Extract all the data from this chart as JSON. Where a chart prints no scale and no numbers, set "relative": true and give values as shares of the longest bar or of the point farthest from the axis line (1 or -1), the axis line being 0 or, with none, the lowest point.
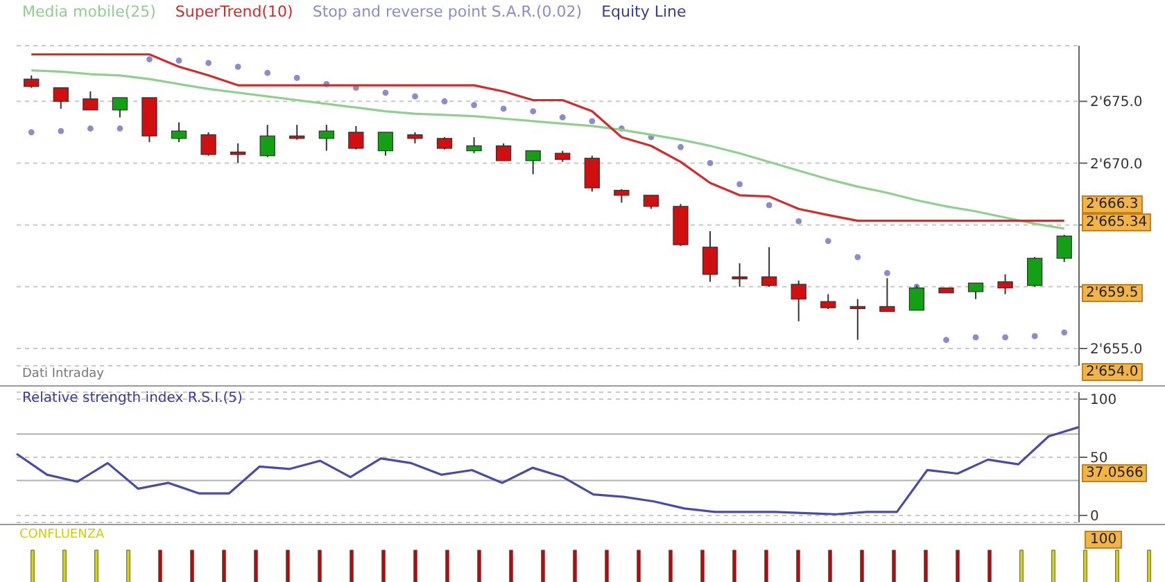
{
  "chart_data": [
    {
      "type": "candlestick",
      "categories": [
        null,
        null,
        null,
        null,
        null,
        null,
        null,
        null,
        null,
        null,
        null,
        null,
        null,
        null,
        null,
        null,
        null,
        null,
        null,
        null,
        null,
        null,
        null,
        null,
        null,
        null,
        null,
        null,
        null,
        null,
        null,
        null,
        null,
        null,
        null,
        null
      ],
      "ohlc": [
        [
          2676.8,
          2677.1,
          2676.1,
          2676.2
        ],
        [
          2676.1,
          2676.1,
          2674.4,
          2675.0
        ],
        [
          2675.2,
          2675.8,
          2674.3,
          2674.3
        ],
        [
          2674.3,
          2675.3,
          2673.7,
          2675.3
        ],
        [
          2675.3,
          2675.3,
          2671.7,
          2672.2
        ],
        [
          2672.0,
          2673.3,
          2671.7,
          2672.6
        ],
        [
          2672.3,
          2672.5,
          2670.6,
          2670.7
        ],
        [
          2670.9,
          2671.6,
          2670.0,
          2670.7
        ],
        [
          2670.6,
          2673.1,
          2670.5,
          2672.2
        ],
        [
          2672.2,
          2673.1,
          2671.9,
          2672.0
        ],
        [
          2672.0,
          2673.1,
          2671.0,
          2672.6
        ],
        [
          2672.5,
          2673.0,
          2671.1,
          2671.2
        ],
        [
          2671.0,
          2672.5,
          2670.6,
          2672.5
        ],
        [
          2672.3,
          2672.5,
          2671.6,
          2672.0
        ],
        [
          2672.0,
          2672.1,
          2671.1,
          2671.2
        ],
        [
          2671.0,
          2672.1,
          2670.8,
          2671.4
        ],
        [
          2671.4,
          2671.6,
          2670.2,
          2670.2
        ],
        [
          2670.2,
          2671.0,
          2669.1,
          2671.0
        ],
        [
          2670.8,
          2671.0,
          2670.1,
          2670.3
        ],
        [
          2670.4,
          2670.6,
          2667.7,
          2668.0
        ],
        [
          2667.8,
          2667.9,
          2666.8,
          2667.4
        ],
        [
          2667.4,
          2667.4,
          2666.3,
          2666.5
        ],
        [
          2666.5,
          2666.7,
          2663.3,
          2663.4
        ],
        [
          2663.2,
          2664.5,
          2660.4,
          2661.0
        ],
        [
          2660.8,
          2661.9,
          2660.0,
          2660.7
        ],
        [
          2660.8,
          2663.2,
          2660.0,
          2660.1
        ],
        [
          2660.2,
          2660.5,
          2657.2,
          2659.0
        ],
        [
          2658.8,
          2659.4,
          2658.2,
          2658.3
        ],
        [
          2658.4,
          2659.0,
          2655.7,
          2658.4
        ],
        [
          2658.4,
          2660.7,
          2658.0,
          2658.0
        ],
        [
          2658.1,
          2660.1,
          2658.1,
          2659.9
        ],
        [
          2659.9,
          2659.9,
          2659.5,
          2659.5
        ],
        [
          2659.6,
          2660.3,
          2659.0,
          2660.3
        ],
        [
          2660.4,
          2661.0,
          2659.4,
          2659.9
        ],
        [
          2660.1,
          2662.4,
          2660.0,
          2662.3
        ],
        [
          2662.3,
          2664.2,
          2662.0,
          2664.1
        ]
      ],
      "colors": [
        "#d01010",
        "#d01010",
        "#d01010",
        "#14a014",
        "#d01010",
        "#14a014",
        "#d01010",
        "#d01010",
        "#14a014",
        "#d01010",
        "#14a014",
        "#d01010",
        "#14a014",
        "#d01010",
        "#d01010",
        "#14a014",
        "#d01010",
        "#14a014",
        "#d01010",
        "#d01010",
        "#d01010",
        "#d01010",
        "#d01010",
        "#d01010",
        "#d01010",
        "#d01010",
        "#d01010",
        "#d01010",
        "#d01010",
        "#d01010",
        "#14a014",
        "#d01010",
        "#14a014",
        "#d01010",
        "#14a014",
        "#14a014"
      ],
      "series": [
        {
          "name": "Media mobile(25)",
          "type": "line",
          "color": "#8fd08f",
          "values": [
            2677.5,
            2677.4,
            2677.2,
            2677.1,
            2676.8,
            2676.4,
            2676.0,
            2675.7,
            2675.4,
            2675.1,
            2674.8,
            2674.5,
            2674.2,
            2674.0,
            2673.9,
            2673.8,
            2673.6,
            2673.4,
            2673.2,
            2673.0,
            2672.7,
            2672.3,
            2671.9,
            2671.4,
            2670.8,
            2670.1,
            2669.4,
            2668.7,
            2668.1,
            2667.6,
            2667.0,
            2666.5,
            2666.1,
            2665.6,
            2665.1,
            2664.7
          ]
        },
        {
          "name": "SuperTrend(10)",
          "type": "line",
          "color": "#d42a2a",
          "values": [
            2678.8,
            2678.8,
            2678.8,
            2678.8,
            2678.8,
            2677.8,
            2677.1,
            2676.3,
            2676.3,
            2676.3,
            2676.3,
            2676.3,
            2676.3,
            2676.3,
            2676.3,
            2676.3,
            2675.8,
            2675.1,
            2675.1,
            2674.2,
            2672.1,
            2671.4,
            2670.1,
            2668.4,
            2667.4,
            2667.3,
            2666.3,
            2665.8,
            2665.34,
            2665.34,
            2665.34,
            2665.34,
            2665.34,
            2665.34,
            2665.34,
            2665.34
          ]
        },
        {
          "name": "Stop and reverse point S.A.R.(0.02)",
          "type": "scatter",
          "color": "#8a8ccc",
          "values": [
            2672.5,
            2672.6,
            2672.8,
            2672.8,
            2678.4,
            2678.3,
            2678.1,
            2677.8,
            2677.3,
            2676.9,
            2676.4,
            2676.1,
            2675.7,
            2675.4,
            2675.0,
            2674.7,
            2674.4,
            2674.2,
            2673.7,
            2673.4,
            2672.8,
            2672.1,
            2671.3,
            2670.0,
            2668.3,
            2666.6,
            2665.3,
            2663.7,
            2662.4,
            2661.1,
            2660.0,
            2655.7,
            2655.9,
            2655.9,
            2656.0,
            2656.3
          ]
        },
        {
          "name": "Equity Line",
          "type": "line",
          "color": "#3b3b9b",
          "values": [
            null,
            null,
            null,
            null,
            null,
            null,
            null,
            null,
            null,
            null,
            null,
            null,
            null,
            null,
            null,
            null,
            null,
            null,
            null,
            null,
            null,
            null,
            null,
            null,
            null,
            null,
            null,
            null,
            null,
            null,
            null,
            null,
            null,
            null,
            null,
            null
          ]
        }
      ],
      "ylim": [
        2653.6,
        2679.5
      ],
      "yticks": [
        {
          "value": 2655,
          "label": "2'655.0"
        },
        {
          "value": 2660,
          "label": null
        },
        {
          "value": 2665,
          "label": null
        },
        {
          "value": 2670,
          "label": "2'670.0"
        },
        {
          "value": 2675,
          "label": "2'675.0"
        }
      ],
      "grid": "y",
      "legend": "top left",
      "tick_labels": "y",
      "annotations": [
        "2'666.3",
        "2'665.34",
        "2'659.5",
        "2'654.0",
        "Dati Intraday"
      ]
    },
    {
      "type": "line",
      "title": "Relative strength index R.S.I.(5)",
      "categories": [
        null,
        null,
        null,
        null,
        null,
        null,
        null,
        null,
        null,
        null,
        null,
        null,
        null,
        null,
        null,
        null,
        null,
        null,
        null,
        null,
        null,
        null,
        null,
        null,
        null,
        null,
        null,
        null,
        null,
        null,
        null,
        null,
        null,
        null,
        null,
        null
      ],
      "series": [
        {
          "color": "#4a4aa8",
          "values": [
            53,
            35,
            29,
            45,
            23,
            28,
            19,
            19,
            42,
            40,
            47,
            33,
            49,
            45,
            35,
            39,
            28,
            41,
            33,
            18,
            16,
            12,
            6,
            3,
            3,
            3,
            2,
            1,
            3,
            3,
            39,
            36,
            48,
            44,
            68,
            76
          ]
        }
      ],
      "ylim": [
        -6,
        106
      ],
      "yticks": [
        0,
        50,
        100
      ],
      "grid": "y",
      "tick_labels": "y",
      "ref_lines": [
        {
          "axis": "y",
          "value": 70,
          "color": "#b0b0b0"
        },
        {
          "axis": "y",
          "value": 30,
          "color": "#b0b0b0"
        }
      ],
      "annotations": [
        "37.0566"
      ]
    },
    {
      "type": "bar",
      "title": "CONFLUENZA",
      "relative": true,
      "categories": [
        null,
        null,
        null,
        null,
        null,
        null,
        null,
        null,
        null,
        null,
        null,
        null,
        null,
        null,
        null,
        null,
        null,
        null,
        null,
        null,
        null,
        null,
        null,
        null,
        null,
        null,
        null,
        null,
        null,
        null,
        null,
        null,
        null,
        null,
        null,
        null
      ],
      "values": [
        1,
        1,
        1,
        1,
        1,
        1,
        1,
        1,
        1,
        1,
        1,
        1,
        1,
        1,
        1,
        1,
        1,
        1,
        1,
        1,
        1,
        1,
        1,
        1,
        1,
        1,
        1,
        1,
        1,
        1,
        1,
        1,
        1,
        1,
        1,
        1
      ],
      "colors": [
        "#d8d800",
        "#d8d800",
        "#d8d800",
        "#d8d800",
        "#c80000",
        "#c80000",
        "#c80000",
        "#c80000",
        "#c80000",
        "#c80000",
        "#c80000",
        "#c80000",
        "#c80000",
        "#c80000",
        "#c80000",
        "#c80000",
        "#c80000",
        "#c80000",
        "#c80000",
        "#c80000",
        "#c80000",
        "#c80000",
        "#c80000",
        "#c80000",
        "#c80000",
        "#c80000",
        "#c80000",
        "#c80000",
        "#c80000",
        "#c80000",
        "#c80000",
        "#d8d800",
        "#d8d800",
        "#d8d800",
        "#d8d800",
        "#d8d800"
      ],
      "annotations": [
        "100"
      ]
    }
  ]
}
